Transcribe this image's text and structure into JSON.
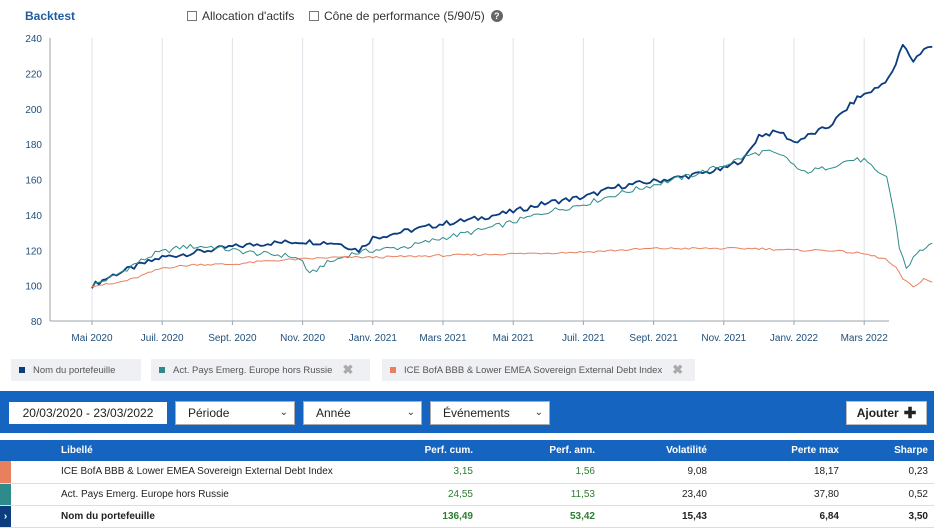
{
  "header": {
    "title": "Backtest",
    "options": [
      {
        "label": "Allocation d'actifs",
        "checked": false
      },
      {
        "label": "Cône de performance (5/90/5)",
        "checked": false
      }
    ]
  },
  "chart_data": {
    "type": "line",
    "x_labels": [
      "Mai 2020",
      "Juil. 2020",
      "Sept. 2020",
      "Nov. 2020",
      "Janv. 2021",
      "Mars 2021",
      "Mai 2021",
      "Juil. 2021",
      "Sept. 2021",
      "Nov. 2021",
      "Janv. 2022",
      "Mars 2022"
    ],
    "ylim": [
      80,
      240
    ],
    "y_ticks": [
      80,
      100,
      120,
      140,
      160,
      180,
      200,
      220,
      240
    ],
    "grid": "vertical",
    "series": [
      {
        "name": "Nom du portefeuille",
        "color": "#0b3d7e",
        "points": [
          [
            0,
            100
          ],
          [
            0.3,
            106
          ],
          [
            0.7,
            112
          ],
          [
            1,
            116
          ],
          [
            1.5,
            119
          ],
          [
            2,
            122
          ],
          [
            2.5,
            124
          ],
          [
            3,
            125
          ],
          [
            3.5,
            124
          ],
          [
            3.8,
            120
          ],
          [
            4,
            127
          ],
          [
            4.5,
            131
          ],
          [
            5,
            135
          ],
          [
            5.5,
            138
          ],
          [
            6,
            142
          ],
          [
            6.5,
            147
          ],
          [
            7,
            150
          ],
          [
            7.5,
            156
          ],
          [
            8,
            159
          ],
          [
            8.5,
            162
          ],
          [
            9,
            166
          ],
          [
            9.3,
            172
          ],
          [
            9.5,
            185
          ],
          [
            9.8,
            187
          ],
          [
            10,
            181
          ],
          [
            10.5,
            190
          ],
          [
            10.9,
            206
          ],
          [
            11.2,
            212
          ],
          [
            11.4,
            220
          ],
          [
            11.55,
            236
          ],
          [
            11.7,
            227
          ],
          [
            11.85,
            234
          ],
          [
            11.97,
            235
          ]
        ]
      },
      {
        "name": "Act. Pays Emerg. Europe hors Russie",
        "color": "#2e8b8b",
        "points": [
          [
            0,
            100
          ],
          [
            0.3,
            105
          ],
          [
            0.6,
            112
          ],
          [
            0.9,
            118
          ],
          [
            1.3,
            122
          ],
          [
            1.7,
            122
          ],
          [
            2,
            120
          ],
          [
            2.4,
            118
          ],
          [
            2.8,
            117
          ],
          [
            3,
            114
          ],
          [
            3.1,
            106
          ],
          [
            3.3,
            112
          ],
          [
            3.7,
            118
          ],
          [
            4,
            120
          ],
          [
            4.5,
            122
          ],
          [
            5,
            127
          ],
          [
            5.5,
            131
          ],
          [
            6,
            136
          ],
          [
            6.5,
            142
          ],
          [
            7,
            146
          ],
          [
            7.5,
            152
          ],
          [
            8,
            157
          ],
          [
            8.5,
            162
          ],
          [
            9,
            168
          ],
          [
            9.3,
            173
          ],
          [
            9.6,
            176
          ],
          [
            9.9,
            172
          ],
          [
            10.1,
            164
          ],
          [
            10.4,
            166
          ],
          [
            10.8,
            171
          ],
          [
            11,
            171
          ],
          [
            11.2,
            163
          ],
          [
            11.32,
            162
          ],
          [
            11.42,
            142
          ],
          [
            11.5,
            122
          ],
          [
            11.6,
            110
          ],
          [
            11.75,
            118
          ],
          [
            11.88,
            122
          ],
          [
            11.97,
            124
          ]
        ]
      },
      {
        "name": "ICE BofA BBB & Lower EMEA Sovereign External Debt Index",
        "color": "#e8805f",
        "points": [
          [
            0,
            100
          ],
          [
            0.3,
            101
          ],
          [
            0.6,
            104
          ],
          [
            1,
            110
          ],
          [
            1.5,
            112
          ],
          [
            2,
            112
          ],
          [
            2.5,
            114
          ],
          [
            3,
            115
          ],
          [
            3.5,
            116
          ],
          [
            4,
            116
          ],
          [
            5,
            117
          ],
          [
            6,
            118
          ],
          [
            7,
            119
          ],
          [
            8,
            121
          ],
          [
            9,
            121
          ],
          [
            9.5,
            121
          ],
          [
            10,
            120
          ],
          [
            10.5,
            120
          ],
          [
            11,
            118
          ],
          [
            11.3,
            115
          ],
          [
            11.45,
            110
          ],
          [
            11.55,
            104
          ],
          [
            11.7,
            99
          ],
          [
            11.85,
            104
          ],
          [
            11.97,
            102
          ]
        ]
      }
    ]
  },
  "legend": [
    {
      "label": "Nom du portefeuille",
      "color": "#0b3d7e"
    },
    {
      "label": "Act. Pays Emerg. Europe hors Russie",
      "color": "#2e8b8b"
    },
    {
      "label": "ICE BofA BBB & Lower EMEA Sovereign External Debt Index",
      "color": "#e8805f"
    }
  ],
  "toolbar": {
    "date_range": "20/03/2020 - 23/03/2022",
    "period": "Période",
    "year": "Année",
    "events": "Événements",
    "add": "Ajouter"
  },
  "table": {
    "headers": [
      "Libellé",
      "Perf. cum.",
      "Perf. ann.",
      "Volatilité",
      "Perte max",
      "Sharpe"
    ],
    "rows": [
      {
        "marker_color": "#e8805f",
        "label": "ICE BofA BBB & Lower EMEA Sovereign External Debt Index",
        "perf_cum": "3,15",
        "perf_ann": "1,56",
        "volatilite": "9,08",
        "perte_max": "18,17",
        "sharpe": "0,23"
      },
      {
        "marker_color": "#2e8b8b",
        "label": "Act. Pays Emerg. Europe hors Russie",
        "perf_cum": "24,55",
        "perf_ann": "11,53",
        "volatilite": "23,40",
        "perte_max": "37,80",
        "sharpe": "0,52"
      },
      {
        "marker_color": "#0b3d7e",
        "label": "Nom du portefeuille",
        "perf_cum": "136,49",
        "perf_ann": "53,42",
        "volatilite": "15,43",
        "perte_max": "6,84",
        "sharpe": "3,50"
      }
    ]
  }
}
